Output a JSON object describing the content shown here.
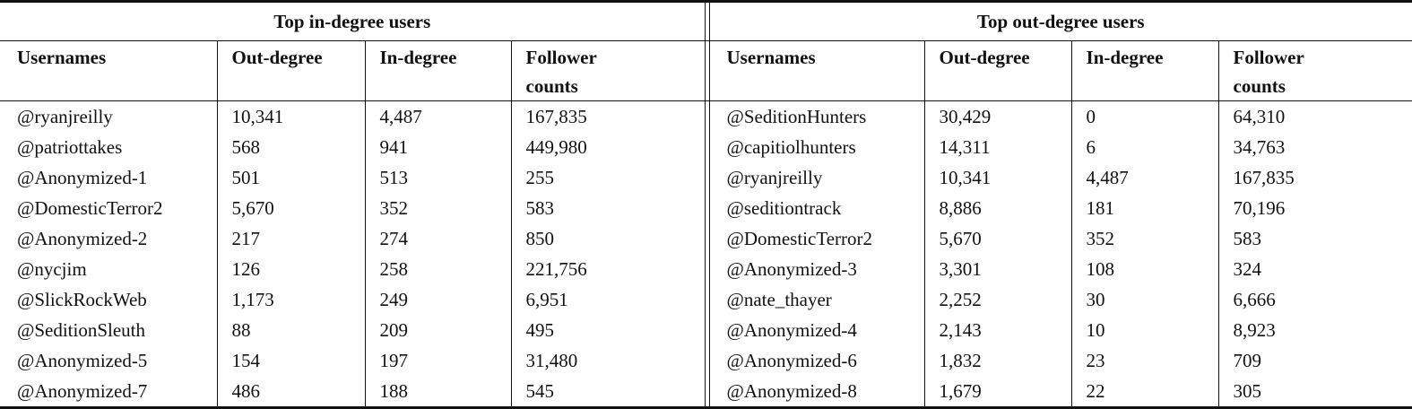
{
  "left": {
    "title": "Top in-degree users",
    "headers": [
      "Usernames",
      "Out-degree",
      "In-degree",
      "Follower counts"
    ],
    "rows": [
      [
        "@ryanjreilly",
        "10,341",
        "4,487",
        "167,835"
      ],
      [
        "@patriottakes",
        "568",
        "941",
        "449,980"
      ],
      [
        "@Anonymized-1",
        "501",
        "513",
        "255"
      ],
      [
        "@DomesticTerror2",
        "5,670",
        "352",
        "583"
      ],
      [
        "@Anonymized-2",
        "217",
        "274",
        "850"
      ],
      [
        "@nycjim",
        "126",
        "258",
        "221,756"
      ],
      [
        "@SlickRockWeb",
        "1,173",
        "249",
        "6,951"
      ],
      [
        "@SeditionSleuth",
        "88",
        "209",
        "495"
      ],
      [
        "@Anonymized-5",
        "154",
        "197",
        "31,480"
      ],
      [
        "@Anonymized-7",
        "486",
        "188",
        "545"
      ]
    ]
  },
  "right": {
    "title": "Top out-degree users",
    "headers": [
      "Usernames",
      "Out-degree",
      "In-degree",
      "Follower counts"
    ],
    "rows": [
      [
        "@SeditionHunters",
        "30,429",
        "0",
        "64,310"
      ],
      [
        "@capitiolhunters",
        "14,311",
        "6",
        "34,763"
      ],
      [
        "@ryanjreilly",
        "10,341",
        "4,487",
        "167,835"
      ],
      [
        "@seditiontrack",
        "8,886",
        "181",
        "70,196"
      ],
      [
        "@DomesticTerror2",
        "5,670",
        "352",
        "583"
      ],
      [
        "@Anonymized-3",
        "3,301",
        "108",
        "324"
      ],
      [
        "@nate_thayer",
        "2,252",
        "30",
        "6,666"
      ],
      [
        "@Anonymized-4",
        "2,143",
        "10",
        "8,923"
      ],
      [
        "@Anonymized-6",
        "1,832",
        "23",
        "709"
      ],
      [
        "@Anonymized-8",
        "1,679",
        "22",
        "305"
      ]
    ]
  }
}
